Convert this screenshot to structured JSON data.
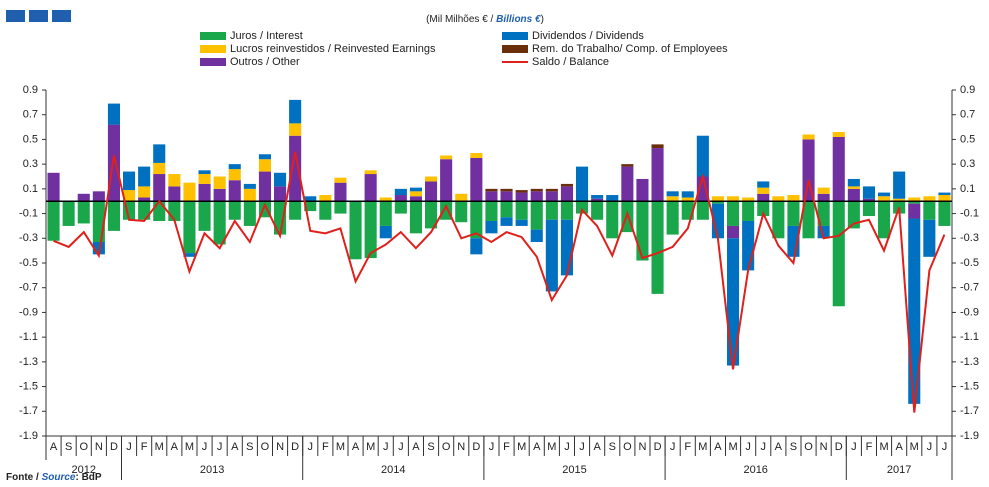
{
  "chart_data": {
    "type": "bar",
    "subtitle": {
      "pt": "(Mil Milhões € / ",
      "en": "Billions €",
      "end": ")"
    },
    "categories": [
      "A",
      "S",
      "O",
      "N",
      "D",
      "J",
      "F",
      "M",
      "A",
      "M",
      "J",
      "J",
      "A",
      "S",
      "O",
      "N",
      "D",
      "J",
      "F",
      "M",
      "A",
      "M",
      "J",
      "J",
      "A",
      "S",
      "O",
      "N",
      "D",
      "J",
      "F",
      "M",
      "A",
      "M",
      "J",
      "J",
      "A",
      "S",
      "O",
      "N",
      "D",
      "J",
      "F",
      "M",
      "A",
      "M",
      "J",
      "J",
      "A",
      "S",
      "O",
      "N",
      "D",
      "J",
      "F",
      "M",
      "A",
      "M",
      "J",
      "J"
    ],
    "years": [
      "2012",
      "2013",
      "2014",
      "2015",
      "2016",
      "2017"
    ],
    "ylim": [
      -1.9,
      0.9
    ],
    "yticks": [
      0.9,
      0.7,
      0.5,
      0.3,
      0.1,
      -0.1,
      -0.3,
      -0.5,
      -0.7,
      -0.9,
      -1.1,
      -1.3,
      -1.5,
      -1.7,
      -1.9
    ],
    "series": [
      {
        "name": "Juros / Interest",
        "color": "#1aa64a",
        "values": [
          -0.32,
          -0.2,
          -0.18,
          -0.33,
          -0.24,
          -0.15,
          -0.15,
          -0.16,
          -0.16,
          -0.42,
          -0.24,
          -0.35,
          -0.15,
          -0.2,
          -0.13,
          -0.27,
          -0.15,
          -0.08,
          -0.15,
          -0.1,
          -0.47,
          -0.46,
          -0.2,
          -0.1,
          -0.26,
          -0.22,
          -0.15,
          -0.17,
          -0.3,
          -0.16,
          -0.13,
          -0.15,
          -0.23,
          -0.15,
          -0.15,
          -0.1,
          -0.15,
          -0.3,
          -0.25,
          -0.48,
          -0.75,
          -0.27,
          -0.15,
          -0.15,
          -0.02,
          -0.2,
          -0.16,
          -0.12,
          -0.3,
          -0.2,
          -0.3,
          -0.2,
          -0.85,
          -0.22,
          -0.12,
          -0.3,
          -0.1,
          -0.02,
          -0.15,
          -0.2
        ]
      },
      {
        "name": "Dividendos / Dividends",
        "color": "#0070c0",
        "values": [
          0,
          0,
          0,
          -0.1,
          0.17,
          0.15,
          0.16,
          0.15,
          0,
          -0.03,
          0.03,
          0,
          0.04,
          0.04,
          0.04,
          0.11,
          0.19,
          0.04,
          0,
          0,
          0,
          0,
          -0.1,
          0.05,
          0.03,
          0,
          0,
          0,
          -0.13,
          -0.1,
          -0.07,
          -0.05,
          -0.1,
          -0.58,
          -0.45,
          0.28,
          0.03,
          0.05,
          0,
          0,
          0,
          0.04,
          0.05,
          0.33,
          -0.28,
          -1.03,
          -0.4,
          0.05,
          0,
          -0.25,
          0,
          -0.1,
          0,
          0.06,
          0.1,
          0.03,
          0.22,
          -1.5,
          -0.3,
          0.02
        ]
      },
      {
        "name": "Lucros reinvestidos / Reinvested Earnings",
        "color": "#ffc000",
        "values": [
          0,
          0,
          0,
          0,
          0,
          0.09,
          0.09,
          0.09,
          0.1,
          0.15,
          0.08,
          0.1,
          0.09,
          0.1,
          0.1,
          0,
          0.1,
          0,
          0.05,
          0.04,
          0,
          0.03,
          0.03,
          0,
          0.04,
          0.04,
          0.03,
          0.06,
          0.04,
          0,
          0,
          0,
          0,
          0,
          0,
          0,
          0,
          0,
          0,
          0,
          0,
          0.04,
          0.03,
          0,
          0.04,
          0.04,
          0.03,
          0.05,
          0.04,
          0.05,
          0.04,
          0.05,
          0.04,
          0.02,
          0,
          0.04,
          0.02,
          0.03,
          0.04,
          0.05
        ]
      },
      {
        "name": "Rem. do Trabalho/ Comp. of Employees",
        "color": "#6b2e0a",
        "values": [
          0,
          0,
          0,
          0,
          0,
          0,
          0,
          0,
          0,
          0,
          0,
          0,
          0,
          0,
          0,
          0,
          0,
          0,
          0,
          0,
          0,
          0,
          0,
          0,
          0,
          0,
          0,
          0,
          0,
          0.02,
          0.02,
          0.02,
          0.02,
          0.02,
          0.02,
          0,
          0,
          0,
          0.02,
          0,
          0.03,
          0,
          0,
          0,
          0,
          0,
          0,
          0,
          0,
          0,
          0,
          0,
          0,
          0,
          0,
          0,
          0,
          0,
          0,
          0
        ]
      },
      {
        "name": "Outros / Other",
        "color": "#7030a0",
        "values": [
          0.23,
          0,
          0.06,
          0.08,
          0.62,
          0,
          0.03,
          0.22,
          0.12,
          0,
          0.14,
          0.1,
          0.17,
          0,
          0.24,
          0.12,
          0.53,
          0,
          0,
          0.15,
          0,
          0.22,
          0,
          0.05,
          0.04,
          0.16,
          0.34,
          0,
          0.35,
          0.08,
          0.08,
          0.07,
          0.08,
          0.08,
          0.12,
          0,
          0.02,
          0,
          0.28,
          0.18,
          0.43,
          0,
          0,
          0.2,
          0,
          -0.1,
          0,
          0.06,
          0,
          0,
          0.5,
          0.06,
          0.52,
          0.1,
          0.02,
          0,
          0,
          -0.12,
          0,
          0
        ]
      }
    ],
    "line": {
      "name": "Saldo / Balance",
      "color": "#e0201b",
      "values": [
        -0.32,
        -0.37,
        -0.25,
        -0.44,
        0.37,
        -0.15,
        -0.16,
        0.0,
        -0.15,
        -0.57,
        -0.26,
        -0.38,
        -0.16,
        -0.33,
        -0.03,
        -0.28,
        0.4,
        -0.24,
        -0.26,
        -0.22,
        -0.65,
        -0.42,
        -0.35,
        -0.25,
        -0.38,
        -0.25,
        -0.04,
        -0.3,
        -0.26,
        -0.33,
        -0.25,
        -0.29,
        -0.45,
        -0.8,
        -0.6,
        -0.07,
        -0.2,
        -0.44,
        -0.1,
        -0.46,
        -0.42,
        -0.37,
        -0.22,
        0.2,
        -0.3,
        -1.36,
        -0.56,
        -0.1,
        -0.36,
        -0.5,
        0.17,
        -0.3,
        -0.28,
        -0.18,
        -0.15,
        -0.4,
        -0.05,
        -1.71,
        -0.56,
        -0.27
      ]
    },
    "source": {
      "pt": "Fonte / ",
      "en": "Source",
      "end": ": BdP"
    }
  }
}
